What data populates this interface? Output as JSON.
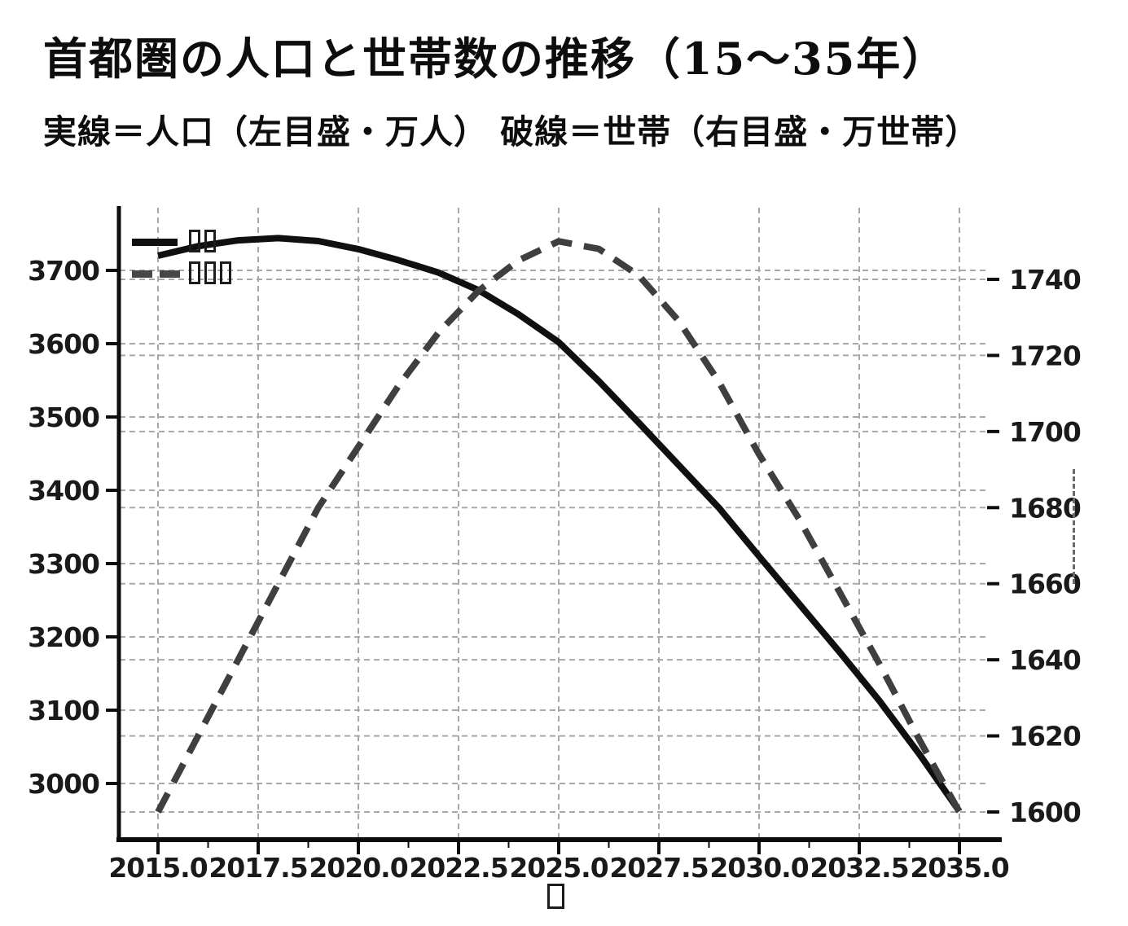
{
  "header": {
    "title": "首都圏の人口と世帯数の推移（15～35年）",
    "subtitle": "実線＝人口（左目盛・万人） 破線＝世帯（右目盛・万世帯）"
  },
  "legend": {
    "position": "upper left",
    "items": [
      {
        "label": "人口",
        "line_style": "solid",
        "color": "#101010"
      },
      {
        "label": "世帯数",
        "line_style": "dashed",
        "color": "#3f3f3f"
      }
    ]
  },
  "axes": {
    "x": {
      "label": "年",
      "tick_labels": [
        "2015.0",
        "2017.5",
        "2020.0",
        "2022.5",
        "2025.0",
        "2027.5",
        "2030.0",
        "2032.5",
        "2035.0"
      ],
      "tick_values": [
        2015,
        2017.5,
        2020,
        2022.5,
        2025,
        2027.5,
        2030,
        2032.5,
        2035
      ]
    },
    "left": {
      "unit": "万人",
      "tick_labels": [
        "3000",
        "3100",
        "3200",
        "3300",
        "3400",
        "3500",
        "3600",
        "3700"
      ],
      "tick_values": [
        3000,
        3100,
        3200,
        3300,
        3400,
        3500,
        3600,
        3700
      ]
    },
    "right": {
      "unit": "万世帯",
      "tick_labels": [
        "1600",
        "1620",
        "1640",
        "1660",
        "1680",
        "1700",
        "1720",
        "1740"
      ],
      "tick_values": [
        1600,
        1620,
        1640,
        1660,
        1680,
        1700,
        1720,
        1740
      ],
      "label_mark": "dashed-vertical-tofu"
    }
  },
  "colors": {
    "population_line": "#101010",
    "households_line": "#3f3f3f",
    "grid": "#a8a8a8",
    "spine": "#0d0d0d",
    "text": "#1a1a1a",
    "background": "#ffffff"
  },
  "chart_data": {
    "type": "line",
    "title": "首都圏の人口と世帯数の推移（15～35年）",
    "xlabel": "年",
    "x": [
      2015,
      2016,
      2017,
      2018,
      2019,
      2020,
      2021,
      2022,
      2023,
      2024,
      2025,
      2026,
      2027,
      2028,
      2029,
      2030,
      2031,
      2032,
      2033,
      2034,
      2035
    ],
    "series": [
      {
        "name": "人口",
        "axis": "left",
        "unit": "万人",
        "style": "solid",
        "values": [
          3720,
          3733,
          3741,
          3744,
          3740,
          3729,
          3714,
          3697,
          3673,
          3640,
          3602,
          3549,
          3492,
          3434,
          3376,
          3310,
          3245,
          3180,
          3113,
          3040,
          2962
        ]
      },
      {
        "name": "世帯数",
        "axis": "right",
        "unit": "万世帯",
        "style": "dashed",
        "values": [
          1600,
          1620,
          1640,
          1660,
          1680,
          1696,
          1712,
          1726,
          1737,
          1745,
          1750,
          1748,
          1741,
          1729,
          1713,
          1694,
          1677,
          1658,
          1639,
          1619,
          1600
        ]
      }
    ],
    "left_ylim": [
      2923,
      3784
    ],
    "right_ylim": [
      1593,
      1759
    ],
    "xlim": [
      2014,
      2036
    ],
    "grid": true,
    "legend_position": "upper left"
  }
}
